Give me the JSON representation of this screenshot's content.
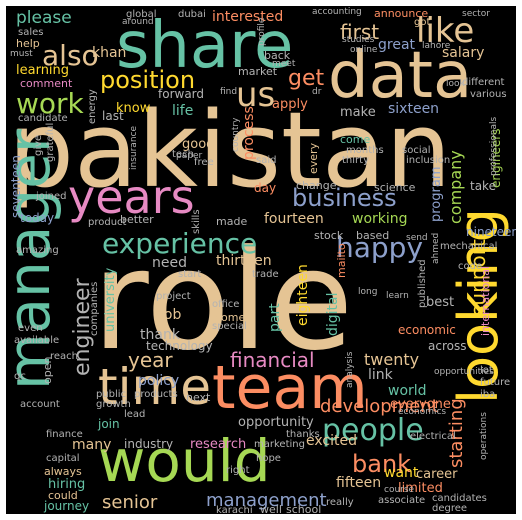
{
  "palette": {
    "teal": "#66c2a5",
    "orange": "#fc8d62",
    "blue": "#8da0cb",
    "pink": "#e78ac3",
    "green": "#a6d854",
    "yellow": "#ffd92f",
    "tan": "#e5c494",
    "gray": "#b3b3b3",
    "background": "#000000"
  },
  "words": [
    {
      "text": "pakistan",
      "color": "tan"
    },
    {
      "text": "role",
      "color": "tan"
    },
    {
      "text": "share",
      "color": "teal"
    },
    {
      "text": "data",
      "color": "tan"
    },
    {
      "text": "looking",
      "color": "yellow"
    },
    {
      "text": "manager",
      "color": "teal"
    },
    {
      "text": "team",
      "color": "orange"
    },
    {
      "text": "would",
      "color": "green"
    },
    {
      "text": "time",
      "color": "tan"
    },
    {
      "text": "years",
      "color": "pink"
    },
    {
      "text": "us",
      "color": "tan"
    },
    {
      "text": "like",
      "color": "tan"
    },
    {
      "text": "also",
      "color": "tan"
    },
    {
      "text": "position",
      "color": "yellow"
    },
    {
      "text": "work",
      "color": "green"
    },
    {
      "text": "get",
      "color": "orange"
    },
    {
      "text": "business",
      "color": "blue"
    },
    {
      "text": "experience",
      "color": "teal"
    },
    {
      "text": "happy",
      "color": "blue"
    },
    {
      "text": "engineer",
      "color": "gray"
    },
    {
      "text": "people",
      "color": "teal"
    },
    {
      "text": "bank",
      "color": "orange"
    },
    {
      "text": "financial",
      "color": "pink"
    },
    {
      "text": "senior",
      "color": "tan"
    },
    {
      "text": "management",
      "color": "blue"
    },
    {
      "text": "development",
      "color": "orange"
    },
    {
      "text": "please",
      "color": "teal"
    },
    {
      "text": "first",
      "color": "tan"
    },
    {
      "text": "khan",
      "color": "tan"
    },
    {
      "text": "interested",
      "color": "orange"
    },
    {
      "text": "great",
      "color": "blue"
    },
    {
      "text": "salary",
      "color": "tan"
    },
    {
      "text": "learning",
      "color": "yellow"
    },
    {
      "text": "comment",
      "color": "pink"
    },
    {
      "text": "sixteen",
      "color": "blue"
    },
    {
      "text": "make",
      "color": "gray"
    },
    {
      "text": "apply",
      "color": "orange"
    },
    {
      "text": "process",
      "color": "orange"
    },
    {
      "text": "fourteen",
      "color": "tan"
    },
    {
      "text": "working",
      "color": "green"
    },
    {
      "text": "program",
      "color": "blue"
    },
    {
      "text": "company",
      "color": "green"
    },
    {
      "text": "support",
      "color": "yellow"
    },
    {
      "text": "starting",
      "color": "orange"
    },
    {
      "text": "thirteen",
      "color": "tan"
    },
    {
      "text": "need",
      "color": "gray"
    },
    {
      "text": "year",
      "color": "tan"
    },
    {
      "text": "policy",
      "color": "blue"
    },
    {
      "text": "thank",
      "color": "gray"
    },
    {
      "text": "twenty",
      "color": "tan"
    },
    {
      "text": "link",
      "color": "gray"
    },
    {
      "text": "world",
      "color": "teal"
    },
    {
      "text": "everyone",
      "color": "orange"
    },
    {
      "text": "excited",
      "color": "tan"
    },
    {
      "text": "want",
      "color": "yellow"
    },
    {
      "text": "career",
      "color": "tan"
    },
    {
      "text": "fifteen",
      "color": "tan"
    },
    {
      "text": "limited",
      "color": "orange"
    },
    {
      "text": "hiring",
      "color": "teal"
    },
    {
      "text": "journey",
      "color": "teal"
    },
    {
      "text": "research",
      "color": "pink"
    },
    {
      "text": "industry",
      "color": "gray"
    },
    {
      "text": "many",
      "color": "tan"
    },
    {
      "text": "join",
      "color": "teal"
    },
    {
      "text": "opportunity",
      "color": "gray"
    },
    {
      "text": "technology",
      "color": "gray"
    },
    {
      "text": "job",
      "color": "tan"
    },
    {
      "text": "women",
      "color": "tan"
    },
    {
      "text": "part",
      "color": "teal"
    },
    {
      "text": "digital",
      "color": "teal"
    },
    {
      "text": "eighteen",
      "color": "yellow"
    },
    {
      "text": "today",
      "color": "blue"
    },
    {
      "text": "university",
      "color": "teal"
    },
    {
      "text": "seventeen",
      "color": "blue"
    },
    {
      "text": "could",
      "color": "tan"
    },
    {
      "text": "always",
      "color": "tan"
    },
    {
      "text": "best",
      "color": "gray"
    },
    {
      "text": "economic",
      "color": "orange"
    },
    {
      "text": "across",
      "color": "gray"
    },
    {
      "text": "international",
      "color": "pink"
    },
    {
      "text": "nineteen",
      "color": "blue"
    },
    {
      "text": "engineers",
      "color": "green"
    },
    {
      "text": "take",
      "color": "gray"
    },
    {
      "text": "science",
      "color": "gray"
    },
    {
      "text": "change",
      "color": "gray"
    },
    {
      "text": "every",
      "color": "tan"
    },
    {
      "text": "come",
      "color": "teal"
    },
    {
      "text": "stock",
      "color": "gray"
    },
    {
      "text": "based",
      "color": "gray"
    },
    {
      "text": "mailto",
      "color": "orange"
    },
    {
      "text": "good",
      "color": "tan"
    },
    {
      "text": "day",
      "color": "orange"
    },
    {
      "text": "know",
      "color": "yellow"
    },
    {
      "text": "last",
      "color": "gray"
    },
    {
      "text": "life",
      "color": "teal"
    },
    {
      "text": "forward",
      "color": "gray"
    },
    {
      "text": "help",
      "color": "tan"
    },
    {
      "text": "sales",
      "color": "gray"
    },
    {
      "text": "global",
      "color": "gray"
    },
    {
      "text": "dubai",
      "color": "gray"
    },
    {
      "text": "announce",
      "color": "orange"
    },
    {
      "text": "got",
      "color": "tan"
    },
    {
      "text": "back",
      "color": "gray"
    },
    {
      "text": "market",
      "color": "gray"
    },
    {
      "text": "better",
      "color": "gray"
    },
    {
      "text": "made",
      "color": "gray"
    },
    {
      "text": "well",
      "color": "gray"
    },
    {
      "text": "school",
      "color": "gray"
    },
    {
      "text": "karachi",
      "color": "gray"
    },
    {
      "text": "thanks",
      "color": "gray"
    },
    {
      "text": "next",
      "color": "gray"
    },
    {
      "text": "products",
      "color": "gray"
    },
    {
      "text": "public",
      "color": "gray"
    },
    {
      "text": "growth",
      "color": "gray"
    },
    {
      "text": "lead",
      "color": "gray"
    },
    {
      "text": "capital",
      "color": "gray"
    },
    {
      "text": "account",
      "color": "gray"
    },
    {
      "text": "finance",
      "color": "gray"
    },
    {
      "text": "reach",
      "color": "gray"
    },
    {
      "text": "open",
      "color": "gray"
    },
    {
      "text": "available",
      "color": "gray"
    },
    {
      "text": "even",
      "color": "gray"
    },
    {
      "text": "qc",
      "color": "gray"
    },
    {
      "text": "companies",
      "color": "gray"
    },
    {
      "text": "amazing",
      "color": "gray"
    },
    {
      "text": "give",
      "color": "gray"
    },
    {
      "text": "grateful",
      "color": "gray"
    },
    {
      "text": "candidate",
      "color": "gray"
    },
    {
      "text": "energy",
      "color": "gray"
    },
    {
      "text": "product",
      "color": "gray"
    },
    {
      "text": "joined",
      "color": "gray"
    },
    {
      "text": "start",
      "color": "gray"
    },
    {
      "text": "trade",
      "color": "gray"
    },
    {
      "text": "office",
      "color": "gray"
    },
    {
      "text": "special",
      "color": "gray"
    },
    {
      "text": "project",
      "color": "gray"
    },
    {
      "text": "skills",
      "color": "gray"
    },
    {
      "text": "tech",
      "color": "gray"
    },
    {
      "text": "paper",
      "color": "gray"
    },
    {
      "text": "free",
      "color": "gray"
    },
    {
      "text": "said",
      "color": "gray"
    },
    {
      "text": "months",
      "color": "gray"
    },
    {
      "text": "thirty",
      "color": "gray"
    },
    {
      "text": "social",
      "color": "gray"
    },
    {
      "text": "inclusion",
      "color": "gray"
    },
    {
      "text": "published",
      "color": "gray"
    },
    {
      "text": "mechanical",
      "color": "gray"
    },
    {
      "text": "code",
      "color": "gray"
    },
    {
      "text": "opportunities",
      "color": "gray"
    },
    {
      "text": "future",
      "color": "gray"
    },
    {
      "text": "lot",
      "color": "gray"
    },
    {
      "text": "iba",
      "color": "gray"
    },
    {
      "text": "operations",
      "color": "gray"
    },
    {
      "text": "candidates",
      "color": "gray"
    },
    {
      "text": "degree",
      "color": "gray"
    },
    {
      "text": "associate",
      "color": "gray"
    },
    {
      "text": "course",
      "color": "gray"
    },
    {
      "text": "electrical",
      "color": "gray"
    },
    {
      "text": "really",
      "color": "gray"
    },
    {
      "text": "hope",
      "color": "gray"
    },
    {
      "text": "marketing",
      "color": "gray"
    },
    {
      "text": "right",
      "color": "gray"
    },
    {
      "text": "various",
      "color": "gray"
    },
    {
      "text": "professionals",
      "color": "gray"
    },
    {
      "text": "different",
      "color": "gray"
    },
    {
      "text": "lahore",
      "color": "gray"
    },
    {
      "text": "online",
      "color": "gray"
    },
    {
      "text": "studies",
      "color": "gray"
    },
    {
      "text": "accounting",
      "color": "gray"
    },
    {
      "text": "sector",
      "color": "gray"
    },
    {
      "text": "around",
      "color": "gray"
    },
    {
      "text": "profile",
      "color": "gray"
    },
    {
      "text": "must",
      "color": "gray"
    },
    {
      "text": "look",
      "color": "gray"
    },
    {
      "text": "send",
      "color": "gray"
    },
    {
      "text": "learn",
      "color": "gray"
    },
    {
      "text": "long",
      "color": "gray"
    },
    {
      "text": "ahmed",
      "color": "gray"
    },
    {
      "text": "analysis",
      "color": "gray"
    },
    {
      "text": "insurance",
      "color": "gray"
    },
    {
      "text": "country",
      "color": "gray"
    },
    {
      "text": "economics",
      "color": "gray"
    },
    {
      "text": "meet",
      "color": "gray"
    },
    {
      "text": "find",
      "color": "gray"
    },
    {
      "text": "dr",
      "color": "gray"
    }
  ]
}
